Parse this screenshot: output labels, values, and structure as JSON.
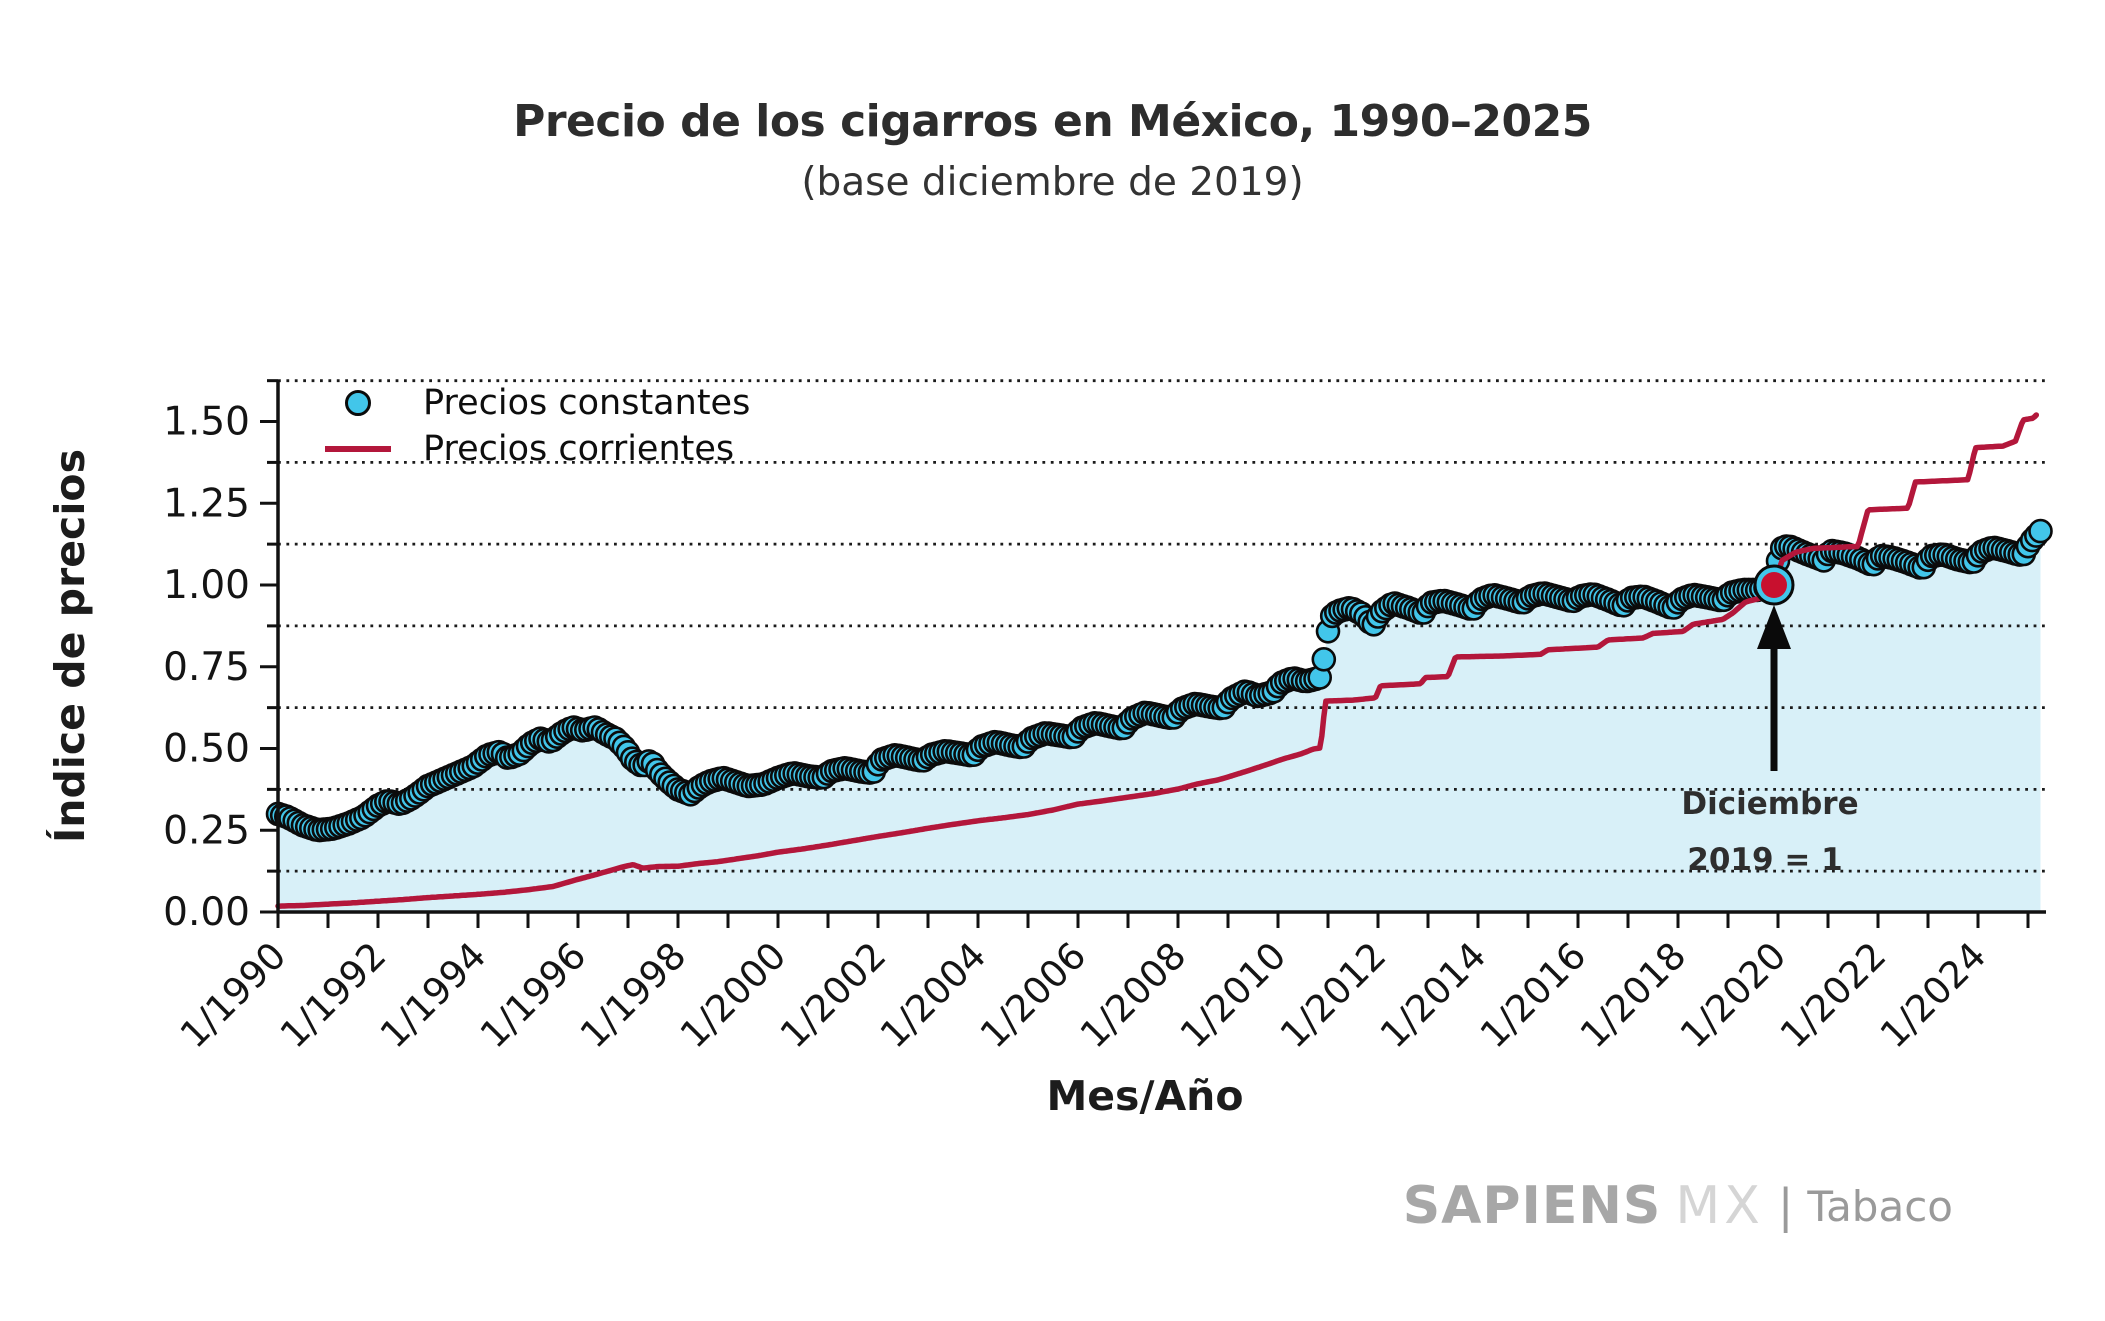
{
  "chart_data": {
    "type": "line",
    "title": "Precio de los cigarros en México, 1990–2025",
    "subtitle": "(base diciembre de 2019)",
    "xlabel": "Mes/Año",
    "ylabel": "Índice de precios",
    "xlim": [
      1990,
      2025.36
    ],
    "ylim": [
      0,
      1.627
    ],
    "grid": "horizontal dotted lines at y-minor ticks",
    "grid_color": "#1b1b1b",
    "area_fill_color": "#d8f0f8",
    "y_ticks": [
      0,
      0.25,
      0.5,
      0.75,
      1.0,
      1.25,
      1.5
    ],
    "y_tick_labels": [
      "0.00",
      "0.25",
      "0.50",
      "0.75",
      "1.00",
      "1.25",
      "1.50"
    ],
    "y_minor_gridlines": [
      0.125,
      0.375,
      0.625,
      0.875,
      1.125,
      1.375,
      1.625
    ],
    "x_minor_tick_every_years": 1,
    "x_tick_label_years": [
      1990,
      1992,
      1994,
      1996,
      1998,
      2000,
      2002,
      2004,
      2006,
      2008,
      2010,
      2012,
      2014,
      2016,
      2018,
      2020,
      2022,
      2024
    ],
    "x_tick_labels": [
      "1/1990",
      "1/1992",
      "1/1994",
      "1/1996",
      "1/1998",
      "1/2000",
      "1/2002",
      "1/2004",
      "1/2006",
      "1/2008",
      "1/2010",
      "1/2012",
      "1/2014",
      "1/2016",
      "1/2018",
      "1/2020",
      "1/2022",
      "1/2024"
    ],
    "legend": {
      "position": "upper-left-inside",
      "entries": [
        {
          "label": "Precios constantes",
          "marker": "circle"
        },
        {
          "label": "Precios corrientes",
          "marker": "line"
        }
      ]
    },
    "annotation": {
      "text_line1": "Diciembre",
      "text_line2": "2019 = 1",
      "x": 2019.92,
      "y": 1.0,
      "marker_color": "#c8102e",
      "arrow": "up-pointing black arrow from label to marker"
    },
    "series": [
      {
        "name": "Precios constantes",
        "style": "scatter",
        "marker": "circle",
        "frequency": "monthly (dots plotted each month, values interpolated from anchors below)",
        "color": "#42c6ea",
        "edge_color": "#0b0b0b",
        "points": [
          [
            1990.0,
            0.3
          ],
          [
            1990.2,
            0.29
          ],
          [
            1990.5,
            0.265
          ],
          [
            1990.8,
            0.25
          ],
          [
            1991.1,
            0.255
          ],
          [
            1991.4,
            0.27
          ],
          [
            1991.7,
            0.29
          ],
          [
            1992.0,
            0.325
          ],
          [
            1992.2,
            0.34
          ],
          [
            1992.45,
            0.33
          ],
          [
            1992.7,
            0.35
          ],
          [
            1993.0,
            0.385
          ],
          [
            1993.3,
            0.405
          ],
          [
            1993.6,
            0.425
          ],
          [
            1993.9,
            0.445
          ],
          [
            1994.2,
            0.48
          ],
          [
            1994.45,
            0.49
          ],
          [
            1994.6,
            0.47
          ],
          [
            1994.85,
            0.485
          ],
          [
            1995.05,
            0.515
          ],
          [
            1995.25,
            0.53
          ],
          [
            1995.45,
            0.52
          ],
          [
            1995.7,
            0.55
          ],
          [
            1995.9,
            0.565
          ],
          [
            1996.1,
            0.555
          ],
          [
            1996.35,
            0.565
          ],
          [
            1996.55,
            0.545
          ],
          [
            1996.75,
            0.53
          ],
          [
            1996.95,
            0.5
          ],
          [
            1997.1,
            0.465
          ],
          [
            1997.3,
            0.445
          ],
          [
            1997.45,
            0.465
          ],
          [
            1997.6,
            0.43
          ],
          [
            1997.8,
            0.4
          ],
          [
            1998.0,
            0.375
          ],
          [
            1998.25,
            0.36
          ],
          [
            1998.45,
            0.385
          ],
          [
            1998.65,
            0.4
          ],
          [
            1998.9,
            0.41
          ],
          [
            1999.1,
            0.4
          ],
          [
            1999.4,
            0.385
          ],
          [
            1999.7,
            0.39
          ],
          [
            2000.0,
            0.41
          ],
          [
            2000.3,
            0.425
          ],
          [
            2000.6,
            0.415
          ],
          [
            2000.9,
            0.41
          ],
          [
            2001.05,
            0.43
          ],
          [
            2001.35,
            0.44
          ],
          [
            2001.65,
            0.43
          ],
          [
            2001.9,
            0.425
          ],
          [
            2002.05,
            0.465
          ],
          [
            2002.35,
            0.48
          ],
          [
            2002.65,
            0.47
          ],
          [
            2002.9,
            0.462
          ],
          [
            2003.05,
            0.48
          ],
          [
            2003.35,
            0.492
          ],
          [
            2003.65,
            0.485
          ],
          [
            2003.9,
            0.478
          ],
          [
            2004.05,
            0.505
          ],
          [
            2004.35,
            0.52
          ],
          [
            2004.65,
            0.51
          ],
          [
            2004.9,
            0.503
          ],
          [
            2005.05,
            0.53
          ],
          [
            2005.35,
            0.547
          ],
          [
            2005.65,
            0.54
          ],
          [
            2005.9,
            0.533
          ],
          [
            2006.05,
            0.562
          ],
          [
            2006.35,
            0.578
          ],
          [
            2006.65,
            0.568
          ],
          [
            2006.9,
            0.56
          ],
          [
            2007.05,
            0.59
          ],
          [
            2007.35,
            0.61
          ],
          [
            2007.65,
            0.6
          ],
          [
            2007.9,
            0.592
          ],
          [
            2008.05,
            0.62
          ],
          [
            2008.35,
            0.637
          ],
          [
            2008.65,
            0.628
          ],
          [
            2008.9,
            0.622
          ],
          [
            2009.05,
            0.652
          ],
          [
            2009.35,
            0.675
          ],
          [
            2009.6,
            0.66
          ],
          [
            2009.9,
            0.672
          ],
          [
            2010.05,
            0.7
          ],
          [
            2010.3,
            0.715
          ],
          [
            2010.55,
            0.705
          ],
          [
            2010.75,
            0.713
          ],
          [
            2010.83,
            0.715
          ],
          [
            2010.92,
            0.775
          ],
          [
            2011.04,
            0.9
          ],
          [
            2011.2,
            0.92
          ],
          [
            2011.45,
            0.93
          ],
          [
            2011.7,
            0.91
          ],
          [
            2011.9,
            0.875
          ],
          [
            2012.04,
            0.915
          ],
          [
            2012.3,
            0.945
          ],
          [
            2012.6,
            0.93
          ],
          [
            2012.9,
            0.912
          ],
          [
            2013.04,
            0.945
          ],
          [
            2013.3,
            0.952
          ],
          [
            2013.6,
            0.94
          ],
          [
            2013.9,
            0.925
          ],
          [
            2014.04,
            0.955
          ],
          [
            2014.3,
            0.97
          ],
          [
            2014.6,
            0.958
          ],
          [
            2014.9,
            0.945
          ],
          [
            2015.04,
            0.965
          ],
          [
            2015.3,
            0.975
          ],
          [
            2015.6,
            0.963
          ],
          [
            2015.9,
            0.95
          ],
          [
            2016.04,
            0.965
          ],
          [
            2016.3,
            0.972
          ],
          [
            2016.6,
            0.955
          ],
          [
            2016.9,
            0.935
          ],
          [
            2017.04,
            0.96
          ],
          [
            2017.3,
            0.965
          ],
          [
            2017.6,
            0.948
          ],
          [
            2017.9,
            0.928
          ],
          [
            2018.04,
            0.955
          ],
          [
            2018.3,
            0.97
          ],
          [
            2018.6,
            0.962
          ],
          [
            2018.9,
            0.952
          ],
          [
            2019.04,
            0.975
          ],
          [
            2019.3,
            0.985
          ],
          [
            2019.6,
            0.985
          ],
          [
            2019.92,
            1.0
          ],
          [
            2020.04,
            1.11
          ],
          [
            2020.2,
            1.12
          ],
          [
            2020.5,
            1.1
          ],
          [
            2020.75,
            1.085
          ],
          [
            2020.92,
            1.075
          ],
          [
            2021.04,
            1.105
          ],
          [
            2021.3,
            1.098
          ],
          [
            2021.6,
            1.082
          ],
          [
            2021.9,
            1.06
          ],
          [
            2022.04,
            1.09
          ],
          [
            2022.3,
            1.083
          ],
          [
            2022.6,
            1.068
          ],
          [
            2022.9,
            1.05
          ],
          [
            2023.04,
            1.088
          ],
          [
            2023.3,
            1.094
          ],
          [
            2023.6,
            1.078
          ],
          [
            2023.9,
            1.068
          ],
          [
            2024.04,
            1.1
          ],
          [
            2024.3,
            1.115
          ],
          [
            2024.6,
            1.103
          ],
          [
            2024.9,
            1.09
          ],
          [
            2025.04,
            1.13
          ],
          [
            2025.25,
            1.165
          ]
        ]
      },
      {
        "name": "Precios corrientes",
        "style": "line",
        "color": "#b3173b",
        "points": [
          [
            1990.0,
            0.018
          ],
          [
            1990.5,
            0.02
          ],
          [
            1991.0,
            0.024
          ],
          [
            1991.5,
            0.028
          ],
          [
            1992.0,
            0.033
          ],
          [
            1992.5,
            0.038
          ],
          [
            1993.0,
            0.044
          ],
          [
            1993.5,
            0.049
          ],
          [
            1994.0,
            0.054
          ],
          [
            1994.5,
            0.06
          ],
          [
            1995.0,
            0.068
          ],
          [
            1995.5,
            0.078
          ],
          [
            1996.0,
            0.1
          ],
          [
            1996.3,
            0.112
          ],
          [
            1996.6,
            0.125
          ],
          [
            1996.9,
            0.138
          ],
          [
            1997.1,
            0.145
          ],
          [
            1997.3,
            0.134
          ],
          [
            1997.6,
            0.139
          ],
          [
            1998.0,
            0.14
          ],
          [
            1998.4,
            0.148
          ],
          [
            1998.8,
            0.154
          ],
          [
            1999.2,
            0.163
          ],
          [
            1999.6,
            0.172
          ],
          [
            2000.0,
            0.183
          ],
          [
            2000.5,
            0.193
          ],
          [
            2001.0,
            0.205
          ],
          [
            2001.5,
            0.218
          ],
          [
            2002.0,
            0.231
          ],
          [
            2002.5,
            0.243
          ],
          [
            2003.0,
            0.256
          ],
          [
            2003.5,
            0.268
          ],
          [
            2004.0,
            0.279
          ],
          [
            2004.5,
            0.288
          ],
          [
            2005.0,
            0.298
          ],
          [
            2005.5,
            0.312
          ],
          [
            2006.0,
            0.33
          ],
          [
            2006.5,
            0.34
          ],
          [
            2007.0,
            0.351
          ],
          [
            2007.5,
            0.362
          ],
          [
            2008.0,
            0.376
          ],
          [
            2008.4,
            0.392
          ],
          [
            2008.8,
            0.404
          ],
          [
            2009.0,
            0.413
          ],
          [
            2009.4,
            0.432
          ],
          [
            2009.8,
            0.452
          ],
          [
            2010.1,
            0.468
          ],
          [
            2010.45,
            0.483
          ],
          [
            2010.7,
            0.498
          ],
          [
            2010.85,
            0.502
          ],
          [
            2010.95,
            0.645
          ],
          [
            2011.5,
            0.648
          ],
          [
            2011.95,
            0.655
          ],
          [
            2012.05,
            0.692
          ],
          [
            2012.5,
            0.695
          ],
          [
            2012.85,
            0.698
          ],
          [
            2012.95,
            0.717
          ],
          [
            2013.4,
            0.72
          ],
          [
            2013.55,
            0.78
          ],
          [
            2014.5,
            0.783
          ],
          [
            2015.25,
            0.788
          ],
          [
            2015.4,
            0.802
          ],
          [
            2016.4,
            0.81
          ],
          [
            2016.6,
            0.832
          ],
          [
            2017.3,
            0.838
          ],
          [
            2017.5,
            0.852
          ],
          [
            2018.1,
            0.858
          ],
          [
            2018.3,
            0.88
          ],
          [
            2018.9,
            0.895
          ],
          [
            2019.1,
            0.915
          ],
          [
            2019.35,
            0.948
          ],
          [
            2019.6,
            0.958
          ],
          [
            2019.75,
            0.968
          ],
          [
            2019.92,
            1.0
          ],
          [
            2020.08,
            1.075
          ],
          [
            2020.35,
            1.1
          ],
          [
            2020.7,
            1.112
          ],
          [
            2021.6,
            1.118
          ],
          [
            2021.8,
            1.23
          ],
          [
            2022.6,
            1.235
          ],
          [
            2022.75,
            1.315
          ],
          [
            2023.8,
            1.322
          ],
          [
            2023.95,
            1.42
          ],
          [
            2024.5,
            1.425
          ],
          [
            2024.75,
            1.44
          ],
          [
            2024.9,
            1.505
          ],
          [
            2025.1,
            1.51
          ],
          [
            2025.2,
            1.525
          ]
        ]
      }
    ]
  },
  "branding": {
    "brand": "SAPIENS",
    "brand2": "MX",
    "separator": "|",
    "product": "Tabaco"
  }
}
